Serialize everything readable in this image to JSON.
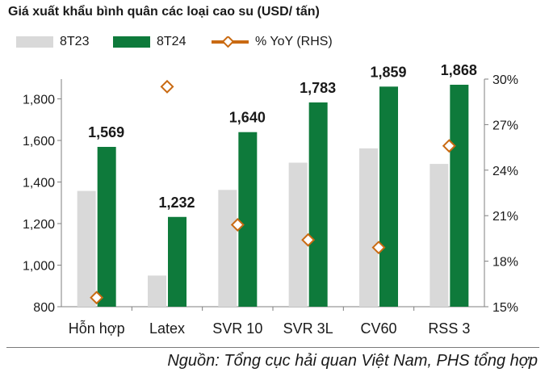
{
  "chart_data": {
    "type": "bar",
    "title": "Giá xuất khẩu bình quân các loại cao su (USD/ tấn)",
    "categories": [
      "Hỗn hợp",
      "Latex",
      "SVR 10",
      "SVR 3L",
      "CV60",
      "RSS 3"
    ],
    "series": [
      {
        "name": "8T23",
        "type": "bar",
        "axis": "left",
        "color": "#d9d9d9",
        "values": [
          1357,
          950,
          1362,
          1493,
          1562,
          1487
        ]
      },
      {
        "name": "8T24",
        "type": "bar",
        "axis": "left",
        "color": "#0e7a3b",
        "values": [
          1569,
          1232,
          1640,
          1783,
          1859,
          1868
        ]
      },
      {
        "name": "% YoY (RHS)",
        "type": "line",
        "axis": "right",
        "color": "#c96a12",
        "values": [
          15.6,
          29.5,
          20.4,
          19.4,
          18.9,
          25.6
        ]
      }
    ],
    "data_labels": [
      "1,569",
      "1,232",
      "1,640",
      "1,783",
      "1,859",
      "1,868"
    ],
    "y_left": {
      "ylim": [
        800,
        2000
      ],
      "ticks": [
        "800",
        "1,000",
        "1,200",
        "1,400",
        "1,600",
        "1,800"
      ],
      "tick_values": [
        800,
        1000,
        1200,
        1400,
        1600,
        1800
      ]
    },
    "y_right": {
      "ylim": [
        15,
        30
      ],
      "ticks": [
        "15%",
        "18%",
        "21%",
        "24%",
        "27%",
        "30%"
      ],
      "tick_values": [
        15,
        18,
        21,
        24,
        27,
        30
      ]
    },
    "grid": false,
    "legend_position": "top-left",
    "source": "Nguồn: Tổng cục hải quan Việt Nam, PHS tổng hợp"
  }
}
